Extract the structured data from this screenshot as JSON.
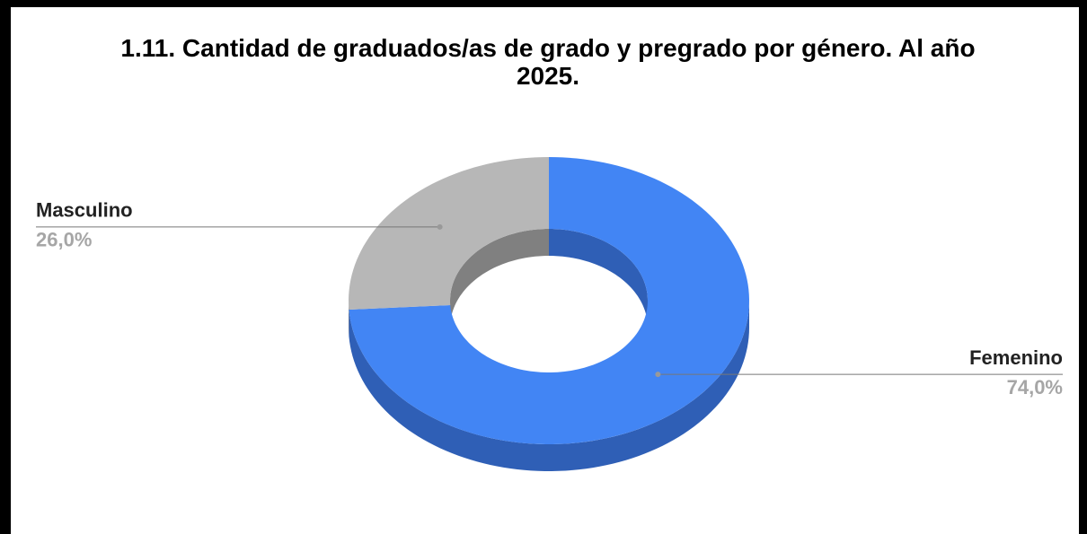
{
  "chart_data": {
    "type": "donut3d",
    "title": "1.11. Cantidad de graduados/as de grado y pregrado por género. Al año 2025.",
    "categories": [
      "Femenino",
      "Masculino"
    ],
    "values": [
      74,
      26
    ],
    "value_labels": [
      "74,0%",
      "26,0%"
    ],
    "colors": [
      "#4285f4",
      "#b7b7b7"
    ],
    "side_colors": [
      "#2f5fb6",
      "#808080"
    ]
  }
}
